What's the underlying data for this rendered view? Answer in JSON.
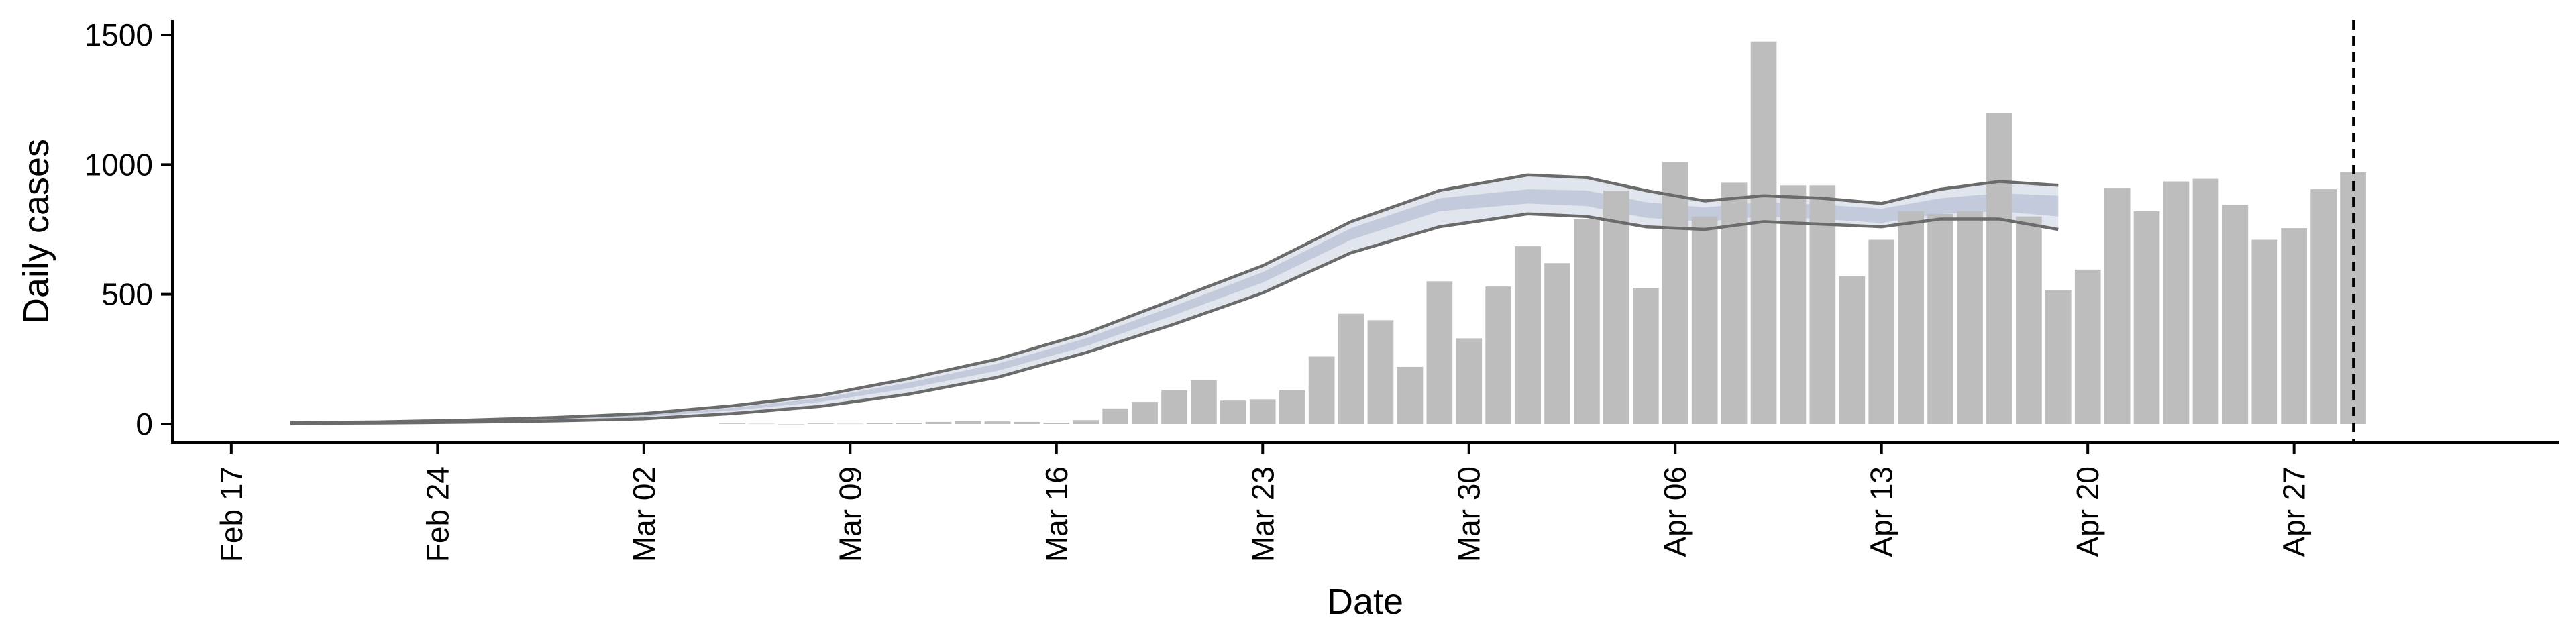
{
  "chart_data": {
    "type": "bar",
    "xlabel": "Date",
    "ylabel": "Daily cases",
    "ylim": [
      0,
      1500
    ],
    "y_ticks": [
      0,
      500,
      1000,
      1500
    ],
    "y_tick_labels": [
      "0",
      "500",
      "1000",
      "1500"
    ],
    "x_range": [
      "2020-02-15",
      "2020-05-06"
    ],
    "x_ticks": [
      "2020-02-17",
      "2020-02-24",
      "2020-03-02",
      "2020-03-09",
      "2020-03-16",
      "2020-03-23",
      "2020-03-30",
      "2020-04-06",
      "2020-04-13",
      "2020-04-20",
      "2020-04-27"
    ],
    "x_tick_labels": [
      "Feb 17",
      "Feb 24",
      "Mar 02",
      "Mar 09",
      "Mar 16",
      "Mar 23",
      "Mar 30",
      "Apr 06",
      "Apr 13",
      "Apr 20",
      "Apr 27"
    ],
    "vertical_line_date": "2020-04-29",
    "series": [
      {
        "type": "bar",
        "color": "#bdbdbd",
        "points": [
          [
            "2020-03-05",
            2
          ],
          [
            "2020-03-06",
            1
          ],
          [
            "2020-03-07",
            0
          ],
          [
            "2020-03-08",
            2
          ],
          [
            "2020-03-09",
            1
          ],
          [
            "2020-03-10",
            3
          ],
          [
            "2020-03-11",
            5
          ],
          [
            "2020-03-12",
            8
          ],
          [
            "2020-03-13",
            12
          ],
          [
            "2020-03-14",
            10
          ],
          [
            "2020-03-15",
            8
          ],
          [
            "2020-03-16",
            5
          ],
          [
            "2020-03-17",
            15
          ],
          [
            "2020-03-18",
            60
          ],
          [
            "2020-03-19",
            85
          ],
          [
            "2020-03-20",
            130
          ],
          [
            "2020-03-21",
            170
          ],
          [
            "2020-03-22",
            90
          ],
          [
            "2020-03-23",
            95
          ],
          [
            "2020-03-24",
            130
          ],
          [
            "2020-03-25",
            260
          ],
          [
            "2020-03-26",
            425
          ],
          [
            "2020-03-27",
            400
          ],
          [
            "2020-03-28",
            220
          ],
          [
            "2020-03-29",
            550
          ],
          [
            "2020-03-30",
            330
          ],
          [
            "2020-03-31",
            530
          ],
          [
            "2020-04-01",
            685
          ],
          [
            "2020-04-02",
            620
          ],
          [
            "2020-04-03",
            790
          ],
          [
            "2020-04-04",
            900
          ],
          [
            "2020-04-05",
            525
          ],
          [
            "2020-04-06",
            1010
          ],
          [
            "2020-04-07",
            800
          ],
          [
            "2020-04-08",
            930
          ],
          [
            "2020-04-09",
            1475
          ],
          [
            "2020-04-10",
            920
          ],
          [
            "2020-04-11",
            920
          ],
          [
            "2020-04-12",
            570
          ],
          [
            "2020-04-13",
            710
          ],
          [
            "2020-04-14",
            820
          ],
          [
            "2020-04-15",
            810
          ],
          [
            "2020-04-16",
            820
          ],
          [
            "2020-04-17",
            1200
          ],
          [
            "2020-04-18",
            800
          ],
          [
            "2020-04-19",
            515
          ],
          [
            "2020-04-20",
            595
          ],
          [
            "2020-04-21",
            910
          ],
          [
            "2020-04-22",
            820
          ],
          [
            "2020-04-23",
            935
          ],
          [
            "2020-04-24",
            945
          ],
          [
            "2020-04-25",
            845
          ],
          [
            "2020-04-26",
            710
          ],
          [
            "2020-04-27",
            755
          ],
          [
            "2020-04-28",
            905
          ],
          [
            "2020-04-29",
            970
          ]
        ]
      },
      {
        "type": "band",
        "color": "#aeb8cf",
        "dates": [
          "2020-02-19",
          "2020-02-22",
          "2020-02-25",
          "2020-02-28",
          "2020-03-02",
          "2020-03-05",
          "2020-03-08",
          "2020-03-11",
          "2020-03-14",
          "2020-03-17",
          "2020-03-20",
          "2020-03-23",
          "2020-03-26",
          "2020-03-29",
          "2020-04-01",
          "2020-04-03",
          "2020-04-05",
          "2020-04-07",
          "2020-04-09",
          "2020-04-11",
          "2020-04-13",
          "2020-04-15",
          "2020-04-17",
          "2020-04-19"
        ],
        "upper_outer": [
          5,
          8,
          15,
          25,
          40,
          70,
          110,
          175,
          250,
          350,
          480,
          610,
          780,
          900,
          960,
          950,
          900,
          860,
          880,
          870,
          850,
          905,
          935,
          920
        ],
        "upper_inner": [
          4,
          7,
          13,
          22,
          35,
          62,
          100,
          160,
          232,
          330,
          455,
          585,
          755,
          870,
          905,
          900,
          855,
          835,
          855,
          845,
          830,
          870,
          890,
          880
        ],
        "lower_inner": [
          3,
          5,
          10,
          17,
          28,
          52,
          85,
          138,
          205,
          300,
          420,
          545,
          710,
          820,
          850,
          840,
          795,
          780,
          800,
          790,
          775,
          810,
          820,
          800
        ],
        "lower_outer": [
          2,
          4,
          7,
          12,
          20,
          40,
          68,
          115,
          180,
          275,
          385,
          505,
          660,
          760,
          810,
          800,
          760,
          750,
          780,
          770,
          760,
          790,
          790,
          750
        ]
      }
    ]
  }
}
